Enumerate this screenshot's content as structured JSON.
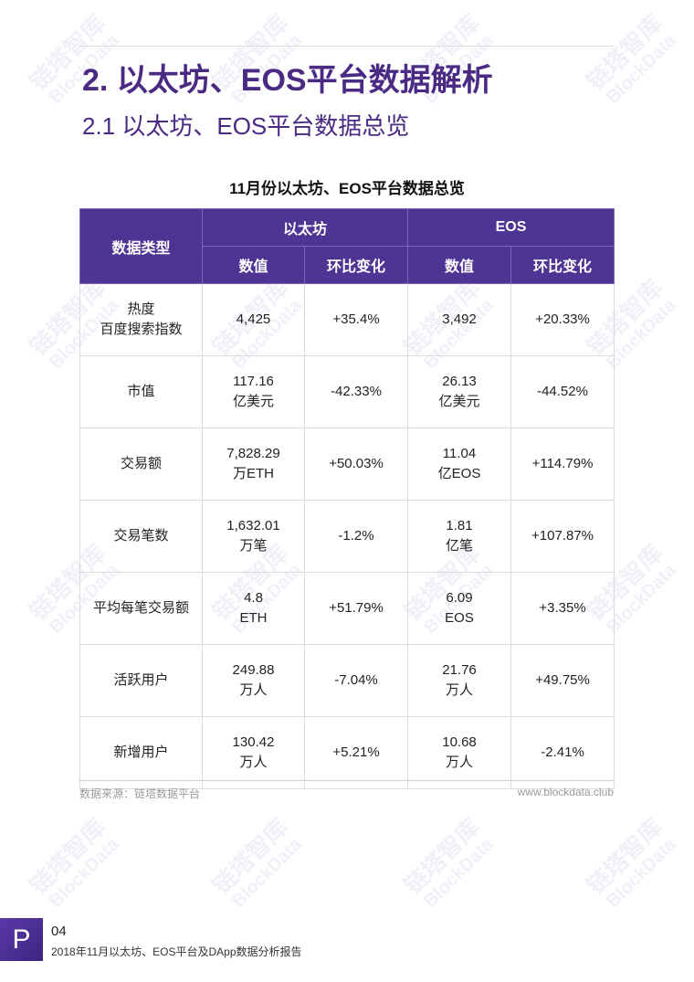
{
  "watermark": {
    "cn": "链塔智库",
    "en": "BlockData"
  },
  "header": {
    "title": "2. 以太坊、EOS平台数据解析",
    "subtitle": "2.1 以太坊、EOS平台数据总览"
  },
  "table": {
    "title": "11月份以太坊、EOS平台数据总览",
    "headers": {
      "type": "数据类型",
      "eth": "以太坊",
      "eos": "EOS",
      "value": "数值",
      "change": "环比变化"
    },
    "rows": [
      {
        "type_l1": "热度",
        "type_l2": "百度搜索指数",
        "eth_v1": "4,425",
        "eth_v2": "",
        "eth_change": "+35.4%",
        "eos_v1": "3,492",
        "eos_v2": "",
        "eos_change": "+20.33%"
      },
      {
        "type_l1": "市值",
        "type_l2": "",
        "eth_v1": "117.16",
        "eth_v2": "亿美元",
        "eth_change": "-42.33%",
        "eos_v1": "26.13",
        "eos_v2": "亿美元",
        "eos_change": "-44.52%"
      },
      {
        "type_l1": "交易额",
        "type_l2": "",
        "eth_v1": "7,828.29",
        "eth_v2": "万ETH",
        "eth_change": "+50.03%",
        "eos_v1": "11.04",
        "eos_v2": "亿EOS",
        "eos_change": "+114.79%"
      },
      {
        "type_l1": "交易笔数",
        "type_l2": "",
        "eth_v1": "1,632.01",
        "eth_v2": "万笔",
        "eth_change": "-1.2%",
        "eos_v1": "1.81",
        "eos_v2": "亿笔",
        "eos_change": "+107.87%"
      },
      {
        "type_l1": "平均每笔交易额",
        "type_l2": "",
        "eth_v1": "4.8",
        "eth_v2": "ETH",
        "eth_change": "+51.79%",
        "eos_v1": "6.09",
        "eos_v2": "EOS",
        "eos_change": "+3.35%"
      },
      {
        "type_l1": "活跃用户",
        "type_l2": "",
        "eth_v1": "249.88",
        "eth_v2": "万人",
        "eth_change": "-7.04%",
        "eos_v1": "21.76",
        "eos_v2": "万人",
        "eos_change": "+49.75%"
      },
      {
        "type_l1": "新增用户",
        "type_l2": "",
        "eth_v1": "130.42",
        "eth_v2": "万人",
        "eth_change": "+5.21%",
        "eos_v1": "10.68",
        "eos_v2": "万人",
        "eos_change": "-2.41%"
      }
    ]
  },
  "footer": {
    "source": "数据来源：链塔数据平台",
    "site": "www.blockdata.club",
    "page_letter": "P",
    "page_number": "04",
    "report_title": "2018年11月以太坊、EOS平台及DApp数据分析报告"
  },
  "colors": {
    "accent": "#4b2a84",
    "header_bg": "#4e3593"
  }
}
